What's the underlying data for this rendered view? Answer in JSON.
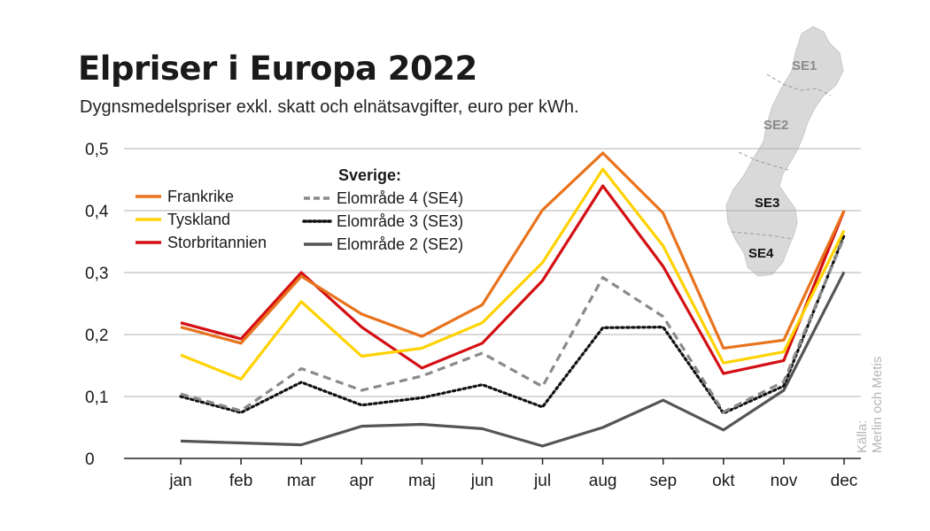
{
  "title": "Elpriser i Europa 2022",
  "subtitle": "Dygnsmedelspriser exkl. skatt och elnätsavgifter, euro per kWh.",
  "source": {
    "label": "Källa:",
    "value": "Merlin och Metis"
  },
  "map": {
    "labels": [
      "SE1",
      "SE2",
      "SE3",
      "SE4"
    ],
    "fill": "#d9d9d9"
  },
  "chart_data": {
    "type": "line",
    "title": "Elpriser i Europa 2022",
    "xlabel": "",
    "ylabel": "euro per kWh",
    "ylim": [
      0,
      0.5
    ],
    "yticks": [
      0,
      0.1,
      0.2,
      0.3,
      0.4,
      0.5
    ],
    "ytick_labels": [
      "0",
      "0,1",
      "0,2",
      "0,3",
      "0,4",
      "0,5"
    ],
    "grid": true,
    "categories": [
      "jan",
      "feb",
      "mar",
      "apr",
      "maj",
      "jun",
      "jul",
      "aug",
      "sep",
      "okt",
      "nov",
      "dec"
    ],
    "legend_group_title": "Sverige:",
    "series": [
      {
        "name": "Frankrike",
        "color": "#e8731c",
        "dash": "solid",
        "group": "europe",
        "values": [
          0.212,
          0.186,
          0.294,
          0.233,
          0.197,
          0.248,
          0.401,
          0.493,
          0.396,
          0.178,
          0.191,
          0.4
        ]
      },
      {
        "name": "Tyskland",
        "color": "#ffd200",
        "dash": "solid",
        "group": "europe",
        "values": [
          0.167,
          0.128,
          0.253,
          0.165,
          0.178,
          0.219,
          0.316,
          0.467,
          0.343,
          0.154,
          0.172,
          0.368
        ]
      },
      {
        "name": "Storbritannien",
        "color": "#d40f14",
        "dash": "solid",
        "group": "europe",
        "values": [
          0.219,
          0.193,
          0.3,
          0.212,
          0.146,
          0.186,
          0.287,
          0.44,
          0.31,
          0.137,
          0.158,
          0.4
        ]
      },
      {
        "name": "Elområde 4 (SE4)",
        "color": "#8a8a8a",
        "dash": "dashed",
        "group": "sverige",
        "values": [
          0.104,
          0.077,
          0.145,
          0.11,
          0.133,
          0.17,
          0.116,
          0.292,
          0.229,
          0.075,
          0.124,
          0.357
        ]
      },
      {
        "name": "Elområde 3 (SE3)",
        "color": "#111111",
        "dash": "dotted",
        "group": "sverige",
        "values": [
          0.1,
          0.074,
          0.123,
          0.086,
          0.098,
          0.119,
          0.083,
          0.211,
          0.212,
          0.073,
          0.117,
          0.36
        ]
      },
      {
        "name": "Elområde 2 (SE2)",
        "color": "#555555",
        "dash": "solid",
        "group": "sverige",
        "values": [
          0.028,
          0.025,
          0.022,
          0.052,
          0.055,
          0.048,
          0.02,
          0.05,
          0.094,
          0.046,
          0.11,
          0.301
        ]
      }
    ]
  }
}
